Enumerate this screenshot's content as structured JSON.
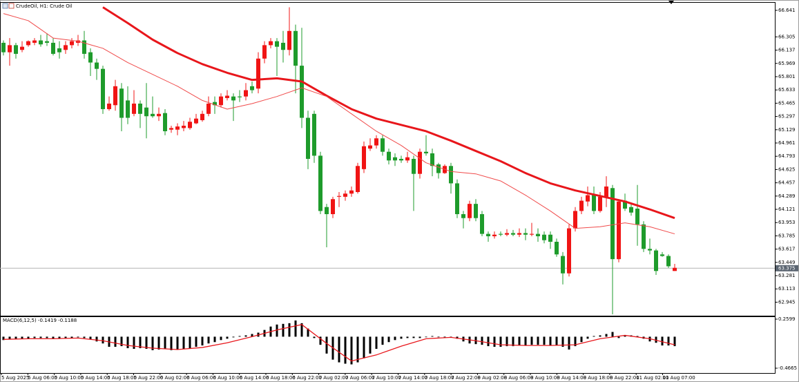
{
  "chart_data": [
    {
      "type": "candlestick",
      "title": "CrudeOil, H1:  Crude Oil",
      "x_labels": [
        "5 Aug 2025",
        "5 Aug 06:00",
        "5 Aug 10:00",
        "5 Aug 14:00",
        "5 Aug 18:00",
        "5 Aug 22:00",
        "6 Aug 02:00",
        "6 Aug 06:00",
        "6 Aug 10:00",
        "6 Aug 14:00",
        "6 Aug 18:00",
        "6 Aug 22:00",
        "7 Aug 02:00",
        "7 Aug 06:00",
        "7 Aug 10:00",
        "7 Aug 14:00",
        "7 Aug 18:00",
        "7 Aug 22:00",
        "8 Aug 02:00",
        "8 Aug 06:00",
        "8 Aug 10:00",
        "8 Aug 14:00",
        "8 Aug 18:00",
        "8 Aug 22:00",
        "11 Aug 02:00",
        "11 Aug 07:00"
      ],
      "open": [
        66.23,
        66.11,
        66.2,
        66.14,
        66.2,
        66.23,
        66.26,
        66.25,
        66.23,
        66.16,
        66.14,
        66.2,
        66.23,
        66.26,
        66.11,
        65.98,
        65.9,
        65.39,
        65.44,
        65.65,
        65.5,
        65.33,
        65.46,
        65.41,
        65.33,
        65.3,
        65.34,
        65.13,
        65.13,
        65.15,
        65.15,
        65.21,
        65.25,
        65.33,
        65.48,
        65.44,
        65.53,
        65.55,
        65.55,
        65.55,
        65.68,
        65.65,
        66.03,
        66.2,
        66.25,
        66.23,
        66.14,
        66.38,
        65.94,
        65.28,
        65.33,
        64.8,
        64.15,
        64.06,
        64.28,
        64.28,
        64.32,
        64.34,
        64.63,
        64.89,
        64.93,
        65.02,
        64.85,
        64.78,
        64.76,
        64.74,
        64.76,
        64.57,
        64.85,
        64.83,
        64.69,
        64.58,
        64.67,
        64.45,
        64.06,
        64.01,
        64.19,
        64.06,
        63.81,
        63.78,
        63.81,
        63.8,
        63.82,
        63.8,
        63.82,
        63.8,
        63.81,
        63.8,
        63.8,
        63.71,
        63.53,
        63.31,
        63.88,
        64.1,
        64.22,
        64.3,
        64.1,
        64.28,
        64.39,
        63.49,
        64.23,
        64.15,
        64.13,
        63.93,
        63.62,
        63.6,
        63.55,
        63.53,
        63.34
      ],
      "high": [
        66.26,
        66.29,
        66.23,
        66.25,
        66.26,
        66.29,
        66.33,
        66.35,
        66.29,
        66.25,
        66.25,
        66.29,
        66.33,
        66.38,
        66.16,
        66.03,
        65.94,
        65.55,
        65.76,
        65.72,
        65.68,
        65.63,
        65.5,
        65.72,
        65.55,
        65.41,
        65.39,
        65.18,
        65.21,
        65.24,
        65.28,
        65.33,
        65.37,
        65.55,
        65.55,
        65.59,
        65.63,
        65.59,
        65.63,
        65.72,
        65.74,
        66.11,
        66.25,
        66.29,
        66.29,
        66.38,
        66.68,
        66.46,
        66.42,
        65.37,
        65.37,
        64.85,
        64.19,
        64.28,
        64.34,
        64.36,
        64.41,
        64.71,
        64.98,
        65.02,
        65.06,
        65.06,
        64.89,
        64.83,
        64.8,
        64.85,
        64.8,
        64.89,
        65.06,
        64.89,
        64.71,
        64.69,
        64.71,
        64.5,
        64.1,
        64.23,
        64.25,
        64.1,
        63.84,
        63.84,
        63.84,
        63.87,
        63.86,
        63.88,
        63.88,
        63.95,
        63.88,
        63.84,
        63.84,
        63.75,
        63.58,
        63.93,
        64.15,
        64.28,
        64.41,
        64.41,
        64.34,
        64.54,
        64.43,
        64.25,
        64.32,
        64.19,
        64.43,
        63.97,
        63.75,
        63.62,
        63.58,
        63.55,
        63.43
      ],
      "low": [
        66.07,
        65.94,
        66.03,
        66.11,
        66.18,
        66.2,
        66.18,
        66.19,
        66.07,
        66.03,
        66.09,
        66.16,
        66.19,
        66.03,
        65.81,
        65.76,
        65.33,
        65.37,
        65.37,
        65.11,
        65.2,
        65.3,
        65.15,
        65.02,
        65.28,
        65.24,
        65.06,
        65.09,
        65.06,
        65.11,
        65.13,
        65.2,
        65.23,
        65.3,
        65.33,
        65.41,
        65.5,
        65.24,
        65.48,
        65.5,
        65.59,
        65.59,
        65.97,
        66.16,
        65.81,
        65.98,
        66.07,
        65.59,
        65.15,
        64.63,
        64.71,
        64.06,
        63.64,
        64.01,
        64.15,
        64.23,
        64.28,
        64.32,
        64.58,
        64.86,
        64.89,
        64.8,
        64.69,
        64.67,
        64.71,
        64.71,
        64.1,
        64.51,
        64.8,
        64.54,
        64.51,
        64.57,
        64.32,
        64.01,
        63.88,
        63.97,
        63.97,
        63.78,
        63.71,
        63.75,
        63.78,
        63.78,
        63.78,
        63.77,
        63.73,
        63.78,
        63.71,
        63.69,
        63.62,
        63.52,
        63.17,
        63.27,
        63.84,
        64.06,
        64.16,
        64.06,
        64.08,
        64.15,
        62.79,
        63.45,
        64.1,
        64.04,
        63.66,
        63.58,
        63.55,
        63.29,
        63.52,
        63.38,
        63.34
      ],
      "close": [
        66.11,
        66.2,
        66.09,
        66.18,
        66.25,
        66.26,
        66.21,
        66.23,
        66.09,
        66.11,
        66.2,
        66.25,
        66.26,
        66.09,
        65.98,
        65.9,
        65.39,
        65.46,
        65.68,
        65.28,
        65.28,
        65.46,
        65.33,
        65.3,
        65.3,
        65.33,
        65.11,
        65.15,
        65.17,
        65.18,
        65.23,
        65.27,
        65.33,
        65.46,
        65.44,
        65.55,
        65.56,
        65.5,
        65.54,
        65.63,
        65.63,
        66.03,
        66.2,
        66.25,
        66.18,
        66.14,
        66.38,
        65.94,
        65.28,
        64.76,
        64.8,
        64.1,
        64.06,
        64.25,
        64.29,
        64.32,
        64.36,
        64.67,
        64.92,
        64.93,
        65.02,
        64.85,
        64.74,
        64.74,
        64.74,
        64.78,
        64.57,
        64.85,
        64.83,
        64.67,
        64.58,
        64.67,
        64.45,
        64.06,
        64.01,
        64.19,
        64.01,
        63.81,
        63.78,
        63.8,
        63.8,
        63.82,
        63.8,
        63.82,
        63.8,
        63.81,
        63.78,
        63.73,
        63.71,
        63.55,
        63.31,
        63.88,
        64.1,
        64.23,
        64.3,
        64.1,
        64.28,
        64.41,
        63.49,
        64.22,
        64.13,
        64.08,
        63.93,
        63.62,
        63.6,
        63.34,
        63.53,
        63.4,
        63.38
      ],
      "up_color": "#f01414",
      "down_color": "#1e9b2b",
      "ylim": [
        62.774,
        66.737
      ],
      "yticks": [
        66.641,
        66.305,
        66.137,
        65.969,
        65.801,
        65.633,
        65.465,
        65.297,
        65.129,
        64.961,
        64.793,
        64.625,
        64.457,
        64.289,
        64.121,
        63.953,
        63.785,
        63.617,
        63.449,
        63.281,
        63.113,
        62.945
      ],
      "current_price": 63.375,
      "moving_averages": [
        {
          "color": "#e8161b",
          "line_width": 3,
          "x": [
            0,
            4,
            8,
            12,
            16,
            20,
            24,
            28,
            32,
            36,
            40,
            44,
            48,
            52,
            56,
            60,
            64,
            68,
            72,
            76,
            80,
            84,
            88,
            92,
            96,
            100,
            104,
            108
          ],
          "values": [
            null,
            null,
            null,
            null,
            66.68,
            66.48,
            66.27,
            66.1,
            65.96,
            65.85,
            65.76,
            65.78,
            65.74,
            65.56,
            65.39,
            65.27,
            65.19,
            65.11,
            64.99,
            64.86,
            64.73,
            64.58,
            64.45,
            64.36,
            64.29,
            64.22,
            64.12,
            64.01
          ]
        },
        {
          "color": "#f04a4a",
          "line_width": 1,
          "x": [
            0,
            4,
            8,
            12,
            16,
            20,
            24,
            28,
            32,
            36,
            40,
            44,
            48,
            52,
            56,
            60,
            64,
            68,
            72,
            76,
            80,
            84,
            88,
            92,
            96,
            100,
            104,
            108
          ],
          "values": [
            66.6,
            66.51,
            66.29,
            66.25,
            66.16,
            65.98,
            65.83,
            65.68,
            65.5,
            65.39,
            65.46,
            65.55,
            65.66,
            65.55,
            65.33,
            65.11,
            64.93,
            64.71,
            64.6,
            64.57,
            64.48,
            64.3,
            64.1,
            63.88,
            63.9,
            63.95,
            63.9,
            63.81
          ]
        }
      ]
    },
    {
      "type": "macd",
      "label": "MACD(6,12,5) -0.1419 -0.1188",
      "histogram": [
        -0.05,
        -0.04,
        -0.04,
        -0.03,
        -0.03,
        -0.02,
        -0.02,
        -0.02,
        -0.03,
        -0.03,
        -0.02,
        -0.02,
        -0.01,
        -0.02,
        -0.04,
        -0.07,
        -0.1,
        -0.15,
        -0.15,
        -0.14,
        -0.17,
        -0.18,
        -0.17,
        -0.18,
        -0.2,
        -0.19,
        -0.18,
        -0.2,
        -0.19,
        -0.18,
        -0.17,
        -0.15,
        -0.13,
        -0.1,
        -0.08,
        -0.05,
        -0.03,
        -0.01,
        0.01,
        0.02,
        0.04,
        0.06,
        0.1,
        0.15,
        0.18,
        0.19,
        0.2,
        0.24,
        0.2,
        0.12,
        -0.02,
        -0.12,
        -0.25,
        -0.34,
        -0.38,
        -0.4,
        -0.41,
        -0.38,
        -0.32,
        -0.25,
        -0.18,
        -0.12,
        -0.08,
        -0.05,
        -0.03,
        -0.02,
        -0.02,
        -0.02,
        0.0,
        0.01,
        0.0,
        -0.01,
        -0.01,
        -0.03,
        -0.07,
        -0.1,
        -0.11,
        -0.12,
        -0.14,
        -0.15,
        -0.15,
        -0.14,
        -0.14,
        -0.13,
        -0.13,
        -0.12,
        -0.12,
        -0.12,
        -0.13,
        -0.13,
        -0.15,
        -0.19,
        -0.14,
        -0.08,
        -0.03,
        0.01,
        0.02,
        0.04,
        0.07,
        -0.02,
        0.02,
        0.02,
        0.01,
        -0.03,
        -0.07,
        -0.09,
        -0.13,
        -0.13,
        -0.14
      ],
      "histogram_color": "#000000",
      "signal": {
        "color": "#e8161b",
        "x": [
          0,
          4,
          8,
          12,
          16,
          20,
          24,
          28,
          32,
          36,
          40,
          44,
          48,
          52,
          56,
          60,
          64,
          68,
          72,
          76,
          80,
          84,
          88,
          92,
          96,
          100,
          104,
          108
        ],
        "values": [
          -0.04,
          -0.03,
          -0.03,
          -0.02,
          -0.06,
          -0.13,
          -0.17,
          -0.19,
          -0.16,
          -0.09,
          0.0,
          0.1,
          0.18,
          -0.1,
          -0.36,
          -0.27,
          -0.14,
          -0.03,
          -0.01,
          -0.06,
          -0.12,
          -0.13,
          -0.13,
          -0.12,
          -0.03,
          0.02,
          -0.03,
          -0.12
        ]
      },
      "ylim": [
        -0.538,
        0.2906
      ],
      "yticks": [
        0.2599,
        -0.4665
      ]
    }
  ]
}
